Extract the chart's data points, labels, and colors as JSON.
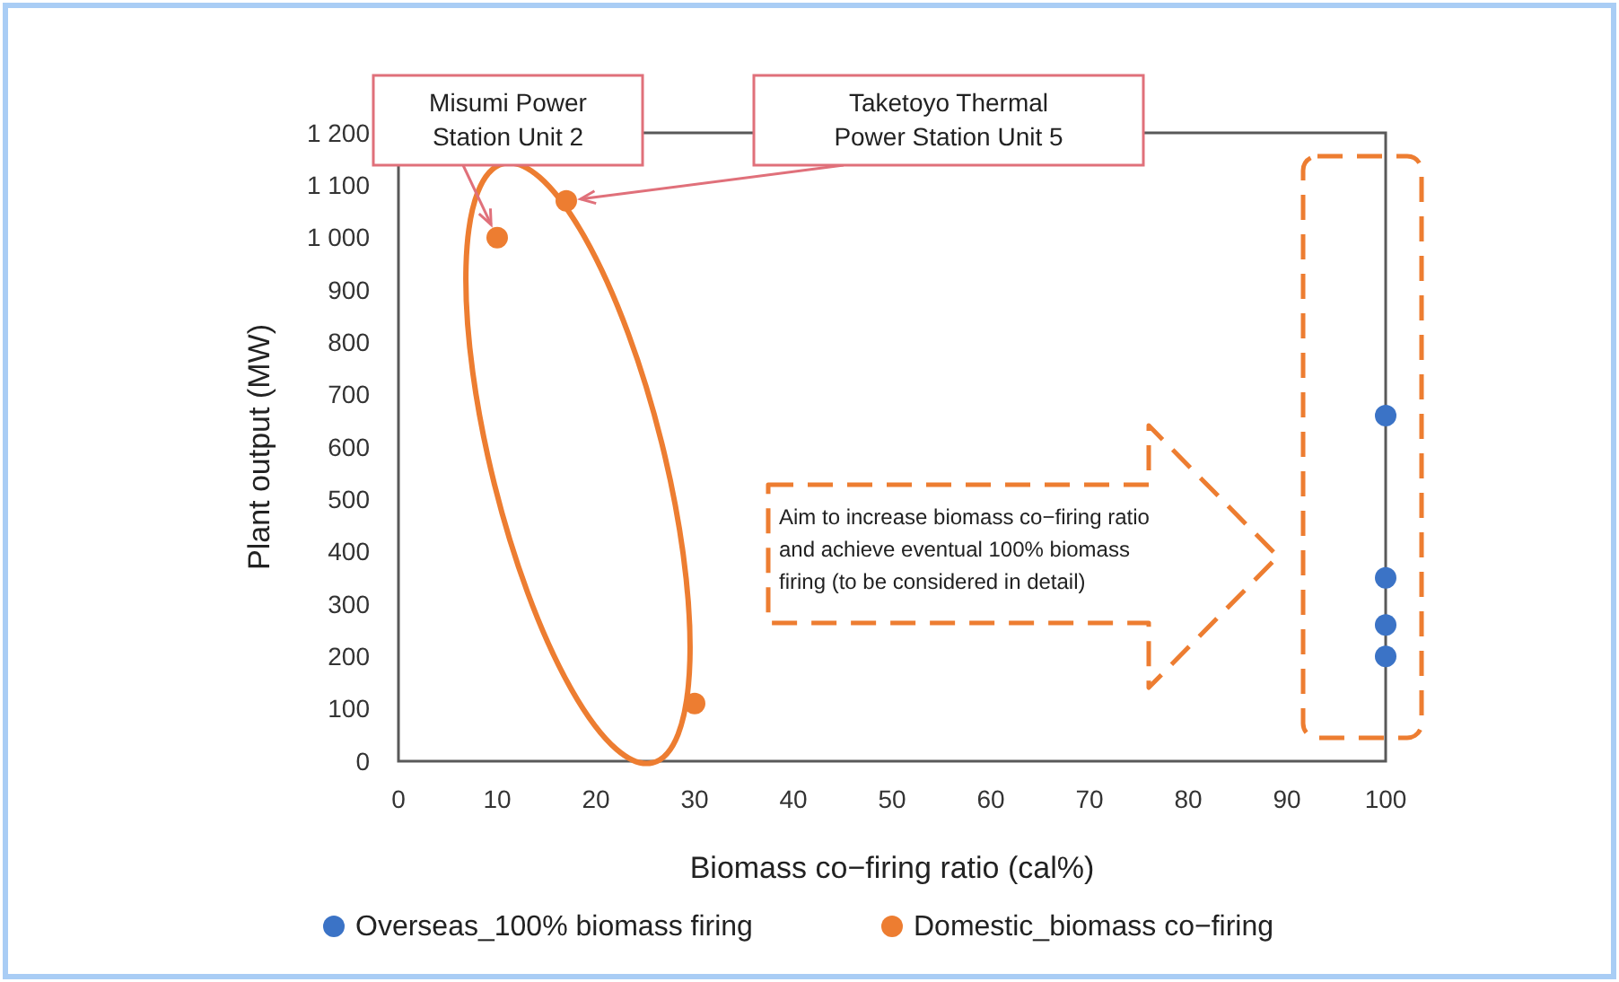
{
  "chart_data": {
    "type": "scatter",
    "xlabel": "Biomass co−firing ratio (cal%)",
    "ylabel": "Plant output (MW)",
    "xlim": [
      0,
      100
    ],
    "xticks": [
      0,
      10,
      20,
      30,
      40,
      50,
      60,
      70,
      80,
      90,
      100
    ],
    "ylim": [
      0,
      1200
    ],
    "yticks": [
      0,
      100,
      200,
      300,
      400,
      500,
      600,
      700,
      800,
      900,
      {
        "value": 1000,
        "label": "1 000"
      },
      {
        "value": 1100,
        "label": "1 100"
      },
      {
        "value": 1200,
        "label": "1 200"
      }
    ],
    "series": [
      {
        "name": "Overseas_100% biomass firing",
        "color": "#3b73c6",
        "x": [
          100,
          100,
          100,
          100
        ],
        "values": [
          660,
          350,
          260,
          200
        ]
      },
      {
        "name": "Domestic_biomass co−firing",
        "color": "#ed7d31",
        "x": [
          10,
          17,
          30
        ],
        "values": [
          1000,
          1070,
          110
        ]
      }
    ],
    "marker": "circle",
    "grid": false,
    "legend": "bottom",
    "annotations": [
      {
        "text": "Misumi Power Station Unit 2",
        "x": 10,
        "y": 1000
      },
      {
        "text": "Taketoyo Thermal Power Station Unit 5",
        "x": 17,
        "y": 1070
      },
      "Aim to increase biomass co−firing ratio and achieve eventual 100% biomass firing (to be considered in detail)"
    ]
  }
}
